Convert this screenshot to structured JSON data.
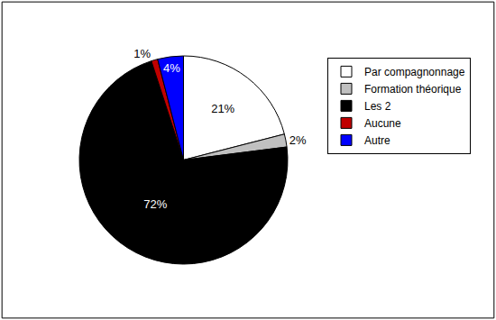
{
  "chart_data": {
    "type": "pie",
    "categories": [
      "Par compagnonnage",
      "Formation théorique",
      "Les 2",
      "Aucune",
      "Autre"
    ],
    "values": [
      21,
      2,
      72,
      1,
      4
    ],
    "value_labels": [
      "21%",
      "2%",
      "72%",
      "1%",
      "4%"
    ],
    "colors": [
      "#ffffff",
      "#c0c0c0",
      "#000000",
      "#c00000",
      "#0000ff"
    ],
    "data_labels": true,
    "legend": "right"
  }
}
